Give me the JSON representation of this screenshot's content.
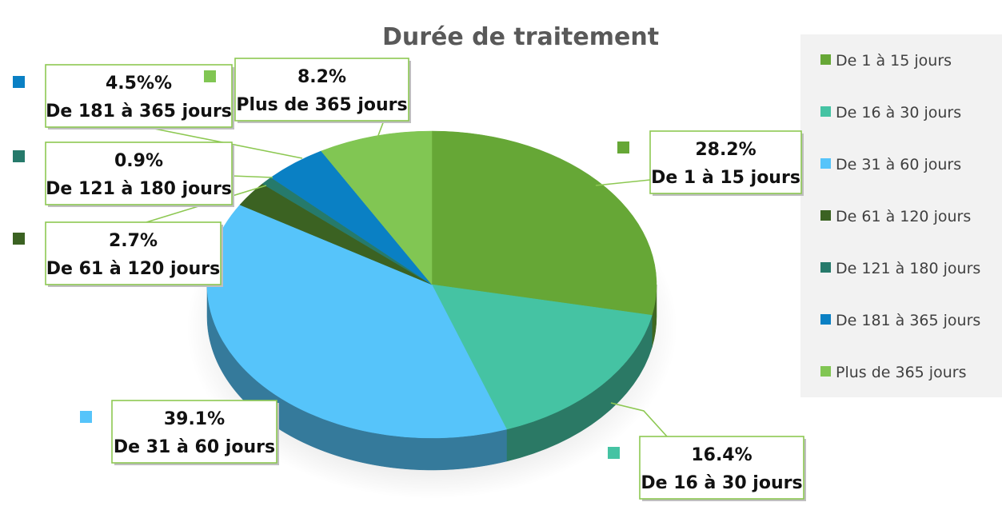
{
  "chart_data": {
    "type": "pie",
    "title": "Durée de traitement",
    "slices": [
      {
        "name": "De 1 à 15 jours",
        "value": 28.2,
        "label": "28.2%",
        "color": "#66a736"
      },
      {
        "name": "De 16 à 30 jours",
        "value": 16.4,
        "label": "16.4%",
        "color": "#45c3a3"
      },
      {
        "name": "De 31 à 60 jours",
        "value": 39.1,
        "label": "39.1%",
        "color": "#56c4fa"
      },
      {
        "name": "De 61 à 120 jours",
        "value": 2.7,
        "label": "2.7%",
        "color": "#3b6222"
      },
      {
        "name": "De 121 à 180 jours",
        "value": 0.9,
        "label": "0.9%",
        "color": "#267a6b"
      },
      {
        "name": "De 181 à 365 jours",
        "value": 4.5,
        "label": "4.5%%",
        "color": "#0a80c4"
      },
      {
        "name": "Plus de 365 jours",
        "value": 8.2,
        "label": "8.2%",
        "color": "#81c653"
      }
    ],
    "legend_position": "right",
    "callout_border_color": "#8dc852"
  }
}
